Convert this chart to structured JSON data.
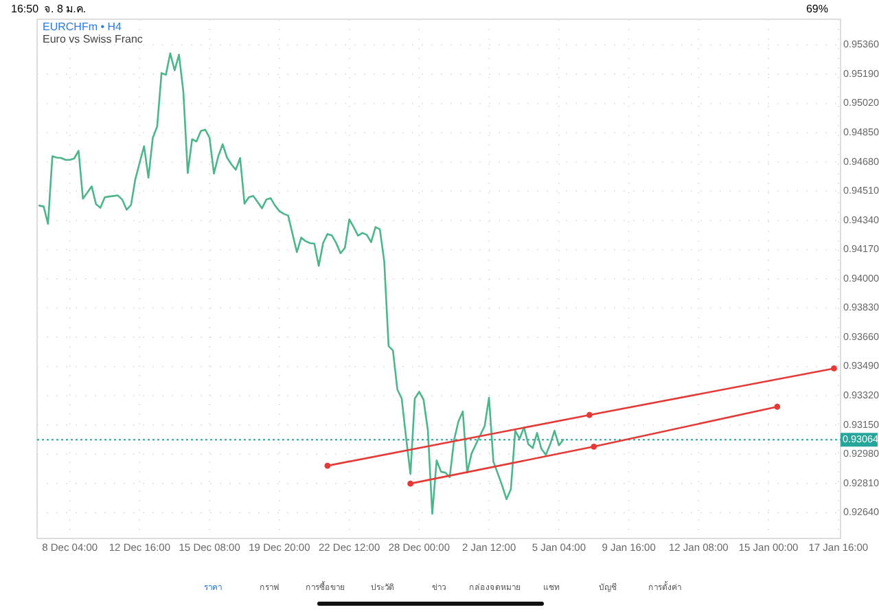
{
  "chart_data": {
    "type": "line",
    "title": "EURCHFm • H4",
    "subtitle": "Euro vs Swiss Franc",
    "annotations": [
      "16:50",
      "จ. 8 ม.ค.",
      "69%",
      "ราคา",
      "กราฟ",
      "การซื้อขาย",
      "ประวัติ",
      "ข่าว",
      "กล่องจดหมาย",
      "แชท",
      "บัญชี",
      "การตั้งค่า"
    ],
    "categories": [
      null,
      null,
      null,
      null,
      null,
      null,
      null,
      "8 Dec 04:00",
      null,
      null,
      null,
      null,
      null,
      null,
      null,
      null,
      null,
      null,
      null,
      null,
      null,
      null,
      null,
      "12 Dec 16:00",
      null,
      null,
      null,
      null,
      null,
      null,
      null,
      null,
      null,
      null,
      null,
      null,
      null,
      null,
      null,
      "15 Dec 08:00",
      null,
      null,
      null,
      null,
      null,
      null,
      null,
      null,
      null,
      null,
      null,
      null,
      null,
      null,
      null,
      "19 Dec 20:00",
      null,
      null,
      null,
      null,
      null,
      null,
      null,
      null,
      null,
      null,
      null,
      null,
      null,
      null,
      null,
      "22 Dec 12:00",
      null,
      null,
      null,
      null,
      null,
      null,
      null,
      null,
      null,
      null,
      null,
      null,
      null,
      null,
      null,
      "28 Dec 00:00",
      null,
      null,
      null,
      null,
      null,
      null,
      null,
      null,
      null,
      null,
      null,
      null,
      null,
      null,
      null,
      "2 Jan 12:00",
      null,
      null,
      null,
      null,
      null,
      null,
      null,
      null,
      null,
      null,
      null,
      null,
      null,
      null,
      null,
      "5 Jan 04:00",
      null,
      null,
      null,
      null,
      null,
      null,
      null,
      null,
      null,
      null,
      null,
      null,
      null,
      null,
      null,
      "9 Jan 16:00",
      null,
      null,
      null,
      null,
      null,
      null,
      null,
      null,
      null,
      null,
      null,
      null,
      null,
      null,
      null,
      "12 Jan 08:00",
      null,
      null,
      null,
      null,
      null,
      null,
      null,
      null,
      null,
      null,
      null,
      null,
      null,
      null,
      null,
      "15 Jan 00:00",
      null,
      null,
      null,
      null,
      null,
      null,
      null,
      null,
      null,
      null,
      null,
      null,
      null,
      null,
      null,
      "17 Jan 16:00"
    ],
    "ylim": [
      0.9249,
      0.9551
    ],
    "yticks": [
      {
        "value": 0.9536,
        "label": "0.95360"
      },
      {
        "value": 0.9519,
        "label": "0.95190"
      },
      {
        "value": 0.9502,
        "label": "0.95020"
      },
      {
        "value": 0.9485,
        "label": "0.94850"
      },
      {
        "value": 0.9468,
        "label": "0.94680"
      },
      {
        "value": 0.9451,
        "label": "0.94510"
      },
      {
        "value": 0.9434,
        "label": "0.94340"
      },
      {
        "value": 0.9417,
        "label": "0.94170"
      },
      {
        "value": 0.94,
        "label": "0.94000"
      },
      {
        "value": 0.9383,
        "label": "0.93830"
      },
      {
        "value": 0.9366,
        "label": "0.93660"
      },
      {
        "value": 0.9349,
        "label": "0.93490"
      },
      {
        "value": 0.9332,
        "label": "0.93320"
      },
      {
        "value": 0.9315,
        "label": "0.93150"
      },
      {
        "value": 0.9298,
        "label": "0.92980"
      },
      {
        "value": 0.9281,
        "label": "0.92810"
      },
      {
        "value": 0.9264,
        "label": "0.92640"
      }
    ],
    "grid": true,
    "ref_lines": [
      {
        "axis": "y",
        "value": 0.93064,
        "label": "0.93064",
        "color": "#26a69a",
        "line_style": "dotted"
      }
    ],
    "series": [
      {
        "color": "#4cb58a",
        "marker": "none",
        "values": [
          0.94426,
          0.94421,
          0.9432,
          0.94713,
          0.94705,
          0.94703,
          0.94692,
          0.94692,
          0.947,
          0.94745,
          0.94466,
          0.94501,
          0.94538,
          0.94434,
          0.94413,
          0.94474,
          0.94479,
          0.94482,
          0.94485,
          0.94461,
          0.94402,
          0.94429,
          0.9458,
          0.94676,
          0.94772,
          0.94588,
          0.9482,
          0.94886,
          0.95197,
          0.95187,
          0.95312,
          0.95213,
          0.95304,
          0.95086,
          0.94615,
          0.94812,
          0.94799,
          0.9486,
          0.94868,
          0.9482,
          0.94612,
          0.94713,
          0.94783,
          0.94705,
          0.94666,
          0.94634,
          0.94703,
          0.94437,
          0.94474,
          0.94482,
          0.94447,
          0.9441,
          0.94461,
          0.94469,
          0.94426,
          0.94394,
          0.94378,
          0.94368,
          0.94261,
          0.94155,
          0.9424,
          0.94219,
          0.94208,
          0.94205,
          0.94075,
          0.94208,
          0.94261,
          0.94253,
          0.94208,
          0.94149,
          0.94181,
          0.94346,
          0.94301,
          0.94251,
          0.94267,
          0.94256,
          0.94213,
          0.94301,
          0.94288,
          0.94102,
          0.93609,
          0.93583,
          0.93357,
          0.93304,
          0.93078,
          0.92865,
          0.93304,
          0.93343,
          0.93298,
          0.93117,
          0.92633,
          0.92944,
          0.92878,
          0.92873,
          0.92846,
          0.93064,
          0.93171,
          0.93229,
          0.92873,
          0.92984,
          0.93038,
          0.93091,
          0.93144,
          0.93309,
          0.92937,
          0.92868,
          0.92798,
          0.92718,
          0.92777,
          0.93117,
          0.9307,
          0.93136,
          0.93038,
          0.93016,
          0.93104,
          0.93011,
          0.92976,
          0.93038,
          0.93117,
          0.93032,
          0.93064,
          null,
          null,
          null,
          null,
          null,
          null,
          null,
          null,
          null,
          null,
          null,
          null,
          null,
          null,
          null,
          null,
          null,
          null,
          null,
          null,
          null,
          null,
          null,
          null,
          null,
          null,
          null,
          null,
          null,
          null,
          null,
          null,
          null,
          null,
          null,
          null,
          null,
          null,
          null,
          null,
          null,
          null,
          null,
          null,
          null,
          null,
          null,
          null,
          null,
          null,
          null,
          null,
          null,
          null,
          null,
          null,
          null,
          null,
          null,
          null,
          null,
          null,
          null
        ]
      },
      {
        "color": "#e53935",
        "marker": "circle",
        "values": [
          null,
          null,
          null,
          null,
          null,
          null,
          null,
          null,
          null,
          null,
          null,
          null,
          null,
          null,
          null,
          null,
          null,
          null,
          null,
          null,
          null,
          null,
          null,
          null,
          null,
          null,
          null,
          null,
          null,
          null,
          null,
          null,
          null,
          null,
          null,
          null,
          null,
          null,
          null,
          null,
          null,
          null,
          null,
          null,
          null,
          null,
          null,
          null,
          null,
          null,
          null,
          null,
          null,
          null,
          null,
          null,
          null,
          null,
          null,
          null,
          null,
          null,
          null,
          null,
          null,
          null,
          0.92913,
          null,
          null,
          null,
          null,
          null,
          null,
          null,
          null,
          null,
          null,
          null,
          null,
          null,
          null,
          null,
          null,
          null,
          null,
          null,
          null,
          null,
          null,
          null,
          null,
          null,
          null,
          null,
          null,
          null,
          null,
          null,
          null,
          null,
          null,
          null,
          null,
          null,
          null,
          null,
          null,
          null,
          null,
          null,
          null,
          null,
          null,
          null,
          null,
          null,
          null,
          null,
          null,
          null,
          null,
          null,
          null,
          null,
          null,
          null,
          0.93208,
          null,
          null,
          null,
          null,
          null,
          null,
          null,
          null,
          null,
          null,
          null,
          null,
          null,
          null,
          null,
          null,
          null,
          null,
          null,
          null,
          null,
          null,
          null,
          null,
          null,
          null,
          null,
          null,
          null,
          null,
          null,
          null,
          null,
          null,
          null,
          null,
          null,
          null,
          null,
          null,
          null,
          null,
          null,
          null,
          null,
          null,
          null,
          null,
          null,
          null,
          null,
          null,
          null,
          null,
          null,
          0.93479,
          null
        ]
      },
      {
        "color": "#e53935",
        "marker": "circle",
        "values": [
          null,
          null,
          null,
          null,
          null,
          null,
          null,
          null,
          null,
          null,
          null,
          null,
          null,
          null,
          null,
          null,
          null,
          null,
          null,
          null,
          null,
          null,
          null,
          null,
          null,
          null,
          null,
          null,
          null,
          null,
          null,
          null,
          null,
          null,
          null,
          null,
          null,
          null,
          null,
          null,
          null,
          null,
          null,
          null,
          null,
          null,
          null,
          null,
          null,
          null,
          null,
          null,
          null,
          null,
          null,
          null,
          null,
          null,
          null,
          null,
          null,
          null,
          null,
          null,
          null,
          null,
          null,
          null,
          null,
          null,
          null,
          null,
          null,
          null,
          null,
          null,
          null,
          null,
          null,
          null,
          null,
          null,
          null,
          null,
          null,
          0.92809,
          null,
          null,
          null,
          null,
          null,
          null,
          null,
          null,
          null,
          null,
          null,
          null,
          null,
          null,
          null,
          null,
          null,
          null,
          null,
          null,
          null,
          null,
          null,
          null,
          null,
          null,
          null,
          null,
          null,
          null,
          null,
          null,
          null,
          null,
          null,
          null,
          null,
          null,
          null,
          null,
          null,
          0.93024,
          null,
          null,
          null,
          null,
          null,
          null,
          null,
          null,
          null,
          null,
          null,
          null,
          null,
          null,
          null,
          null,
          null,
          null,
          null,
          null,
          null,
          null,
          null,
          null,
          null,
          null,
          null,
          null,
          null,
          null,
          null,
          null,
          null,
          null,
          null,
          null,
          null,
          null,
          null,
          null,
          null,
          0.93256,
          null,
          null,
          null,
          null,
          null,
          null,
          null,
          null,
          null,
          null,
          null,
          null,
          null,
          null
        ]
      }
    ]
  }
}
